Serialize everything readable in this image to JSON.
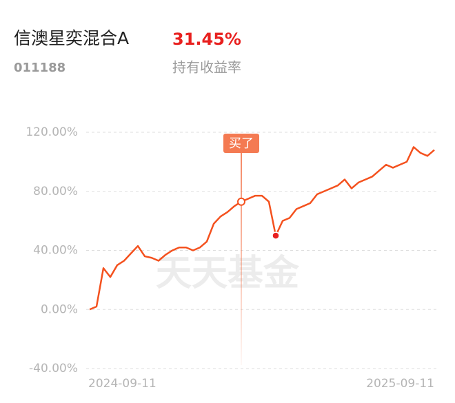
{
  "header": {
    "fund_name": "信澳星奕混合A",
    "return": "31.45%",
    "fund_code": "011188",
    "return_label": "持有收益率"
  },
  "chart_data": {
    "type": "line",
    "watermark": "天天基金",
    "categories": [
      "2024-09-11",
      null,
      null,
      null,
      null,
      null,
      null,
      null,
      null,
      null,
      null,
      null,
      null,
      null,
      null,
      null,
      null,
      null,
      null,
      null,
      null,
      null,
      null,
      null,
      null,
      null,
      null,
      null,
      null,
      null,
      null,
      null,
      null,
      null,
      null,
      null,
      null,
      null,
      null,
      null,
      null,
      null,
      null,
      null,
      null,
      null,
      null,
      null,
      null,
      null,
      "2025-09-11"
    ],
    "series": [
      {
        "color": "#f4511e",
        "values": [
          0,
          2,
          28,
          22,
          30,
          33,
          38,
          43,
          36,
          35,
          33,
          37,
          40,
          42,
          42,
          40,
          42,
          46,
          58,
          63,
          66,
          70,
          73,
          75,
          77,
          77,
          73,
          50,
          60,
          62,
          68,
          70,
          72,
          78,
          80,
          82,
          84,
          88,
          82,
          86,
          88,
          90,
          94,
          98,
          96,
          98,
          100,
          110,
          106,
          104,
          108
        ]
      }
    ],
    "buy": {
      "label": "买了",
      "index": 22
    },
    "sell_index": 27,
    "ylim": [
      -40,
      120
    ],
    "yticks": [
      {
        "value": -40,
        "label": "-40.00%"
      },
      {
        "value": 0,
        "label": "0.00%"
      },
      {
        "value": 40,
        "label": "40.00%"
      },
      {
        "value": 80,
        "label": "80.00%"
      },
      {
        "value": 120,
        "label": "120.00%"
      }
    ],
    "grid": true
  }
}
